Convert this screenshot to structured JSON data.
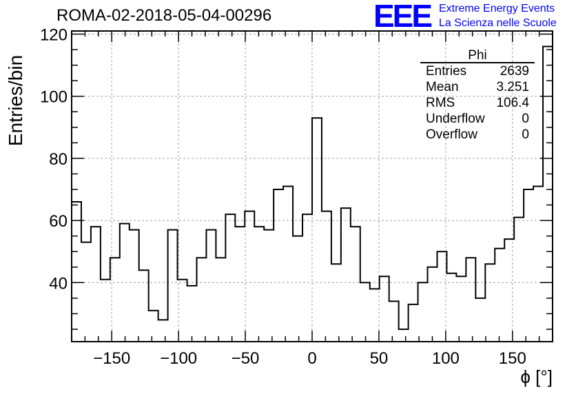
{
  "header": {
    "title": "ROMA-02-2018-05-04-00296",
    "logo_text": "EEE",
    "logo_line1": "Extreme Energy Events",
    "logo_line2": "La Scienza nelle Scuole"
  },
  "stats": {
    "name": "Phi",
    "rows": [
      {
        "label": "Entries",
        "value": "2639"
      },
      {
        "label": "Mean",
        "value": "3.251"
      },
      {
        "label": "RMS",
        "value": "106.4"
      },
      {
        "label": "Underflow",
        "value": "0"
      },
      {
        "label": "Overflow",
        "value": "0"
      }
    ]
  },
  "chart_data": {
    "type": "histogram",
    "title": "ROMA-02-2018-05-04-00296",
    "xlabel": "ϕ [°]",
    "ylabel": "Entries/bin",
    "xlim": [
      -180,
      180
    ],
    "ylim": [
      21,
      121
    ],
    "bin_width": 7.2,
    "x_ticks": [
      -150,
      -100,
      -50,
      0,
      50,
      100,
      150
    ],
    "y_ticks": [
      40,
      60,
      80,
      100,
      120
    ],
    "grid": true,
    "values": [
      66,
      53,
      58,
      41,
      48,
      59,
      57,
      44,
      31,
      28,
      57,
      41,
      39,
      48,
      57,
      48,
      62,
      58,
      63,
      58,
      57,
      70,
      71,
      55,
      62,
      93,
      63,
      46,
      64,
      58,
      40,
      38,
      42,
      34,
      25,
      33,
      40,
      45,
      50,
      43,
      42,
      48,
      35,
      46,
      51,
      54,
      61,
      70,
      71,
      116
    ],
    "line_color": "#000000",
    "grid_color": "#a0a0a0"
  }
}
